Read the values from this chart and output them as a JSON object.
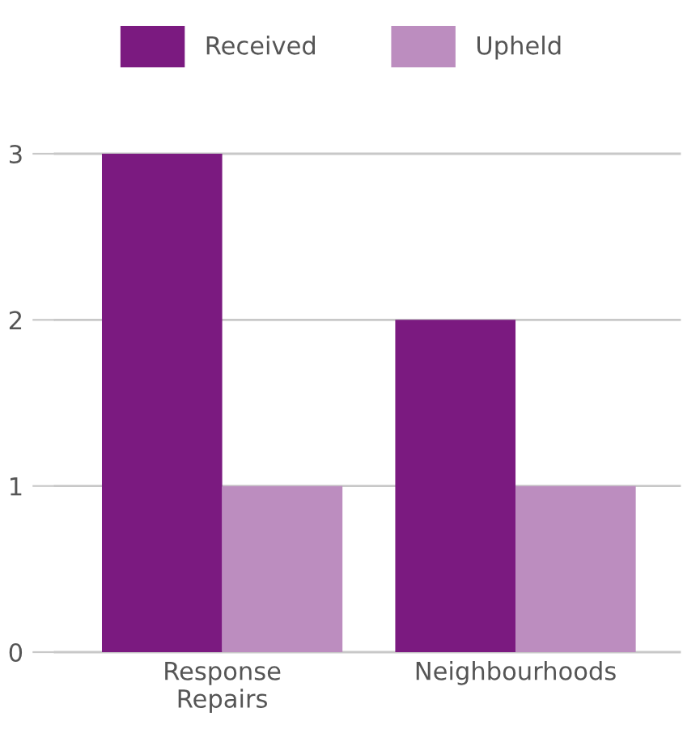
{
  "chart_data": {
    "type": "bar",
    "categories": [
      "Response\nRepairs",
      "Neighbourhoods"
    ],
    "series": [
      {
        "name": "Received",
        "color": "#7b1a80",
        "values": [
          3,
          2
        ]
      },
      {
        "name": "Upheld",
        "color": "#bc8dbf",
        "values": [
          1,
          1
        ]
      }
    ],
    "ylim": [
      0,
      3
    ],
    "yticks": [
      0,
      1,
      2,
      3
    ],
    "grid": "y",
    "legend": "top"
  }
}
